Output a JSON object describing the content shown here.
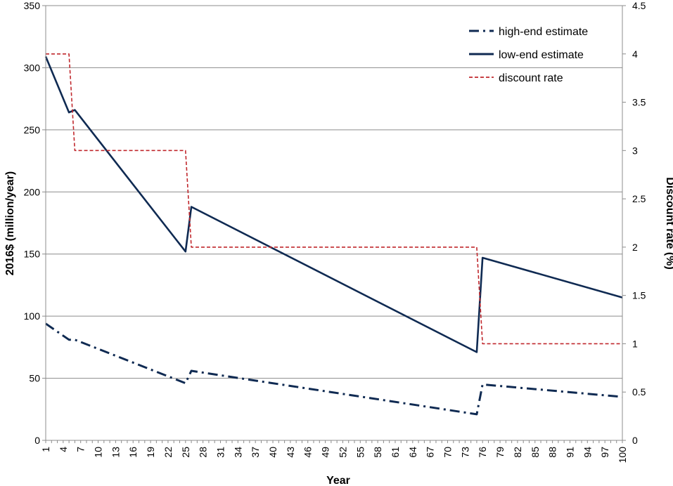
{
  "chart_data": {
    "type": "line",
    "xlabel": "Year",
    "ylabel_left": "2016$ (million/year)",
    "ylabel_right": "Discount rate (%)",
    "xlim": [
      1,
      100
    ],
    "ylim_left": [
      0,
      350
    ],
    "ylim_right": [
      0,
      4.5
    ],
    "x_ticks": [
      1,
      4,
      7,
      10,
      13,
      16,
      19,
      22,
      25,
      28,
      31,
      34,
      37,
      40,
      43,
      46,
      49,
      52,
      55,
      58,
      61,
      64,
      67,
      70,
      73,
      76,
      79,
      82,
      85,
      88,
      91,
      94,
      97,
      100
    ],
    "y_ticks_left": [
      0,
      50,
      100,
      150,
      200,
      250,
      300,
      350
    ],
    "y_ticks_right": [
      "0",
      "0.5",
      "1",
      "1.5",
      "2",
      "2.5",
      "3",
      "3.5",
      "4",
      "4.5"
    ],
    "grid": "horizontal",
    "legend_position": "top-right",
    "series": [
      {
        "name": "high-end estimate",
        "axis": "left",
        "style": "dash-dot",
        "color": "#0f2a52",
        "x": [
          1,
          5,
          6,
          25,
          26,
          75,
          76,
          100
        ],
        "y": [
          94,
          81,
          81,
          46,
          56,
          21,
          45,
          35
        ]
      },
      {
        "name": "low-end estimate",
        "axis": "left",
        "style": "solid",
        "color": "#0f2a52",
        "x": [
          1,
          5,
          6,
          25,
          26,
          75,
          76,
          100
        ],
        "y": [
          309,
          264,
          266,
          152,
          188,
          71,
          147,
          115
        ]
      },
      {
        "name": "discount rate",
        "axis": "right",
        "style": "dashed",
        "color": "#c0282d",
        "x": [
          1,
          5,
          6,
          25,
          26,
          75,
          76,
          100
        ],
        "y": [
          4,
          4,
          3,
          3,
          2,
          2,
          1,
          1
        ]
      }
    ]
  }
}
